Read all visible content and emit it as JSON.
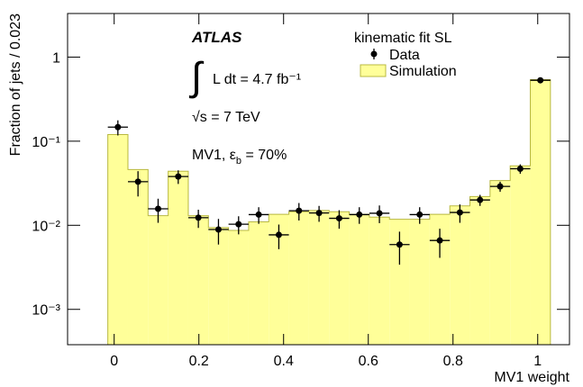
{
  "chart_data": {
    "type": "histogram",
    "x_label": "MV1 weight",
    "y_label": "Fraction of jets / 0.023",
    "log_y": true,
    "xlim": [
      -0.11,
      1.075
    ],
    "ylim": [
      0.00038,
      3.3
    ],
    "xticks": [
      0,
      0.2,
      0.4,
      0.6,
      0.8,
      1
    ],
    "yticks": [
      {
        "value": 0.001,
        "label": "10⁻³"
      },
      {
        "value": 0.01,
        "label": "10⁻²"
      },
      {
        "value": 0.1,
        "label": "10⁻¹"
      },
      1
    ],
    "bins": [
      -0.015,
      0.0325,
      0.08,
      0.1275,
      0.175,
      0.2225,
      0.27,
      0.3175,
      0.365,
      0.4125,
      0.46,
      0.5075,
      0.555,
      0.6025,
      0.65,
      0.6975,
      0.745,
      0.7925,
      0.84,
      0.8875,
      0.935,
      0.9825,
      1.03
    ],
    "legend_title": "kinematic fit SL",
    "series": [
      {
        "name": "Data",
        "color": "#000000",
        "values": [
          0.147,
          0.033,
          0.0157,
          0.038,
          0.0123,
          0.0089,
          0.0103,
          0.0134,
          0.0077,
          0.0149,
          0.014,
          0.0121,
          0.0134,
          0.0139,
          0.0059,
          0.0134,
          0.0066,
          0.0142,
          0.02,
          0.029,
          0.047,
          0.53
        ],
        "errors": [
          0.03,
          0.011,
          0.005,
          0.007,
          0.003,
          0.003,
          0.0025,
          0.003,
          0.0025,
          0.0035,
          0.003,
          0.003,
          0.003,
          0.0033,
          0.0025,
          0.003,
          0.0025,
          0.0035,
          0.003,
          0.004,
          0.006,
          0.02
        ]
      },
      {
        "name": "Simulation",
        "color": "#ffff99",
        "edge_color": "#b8b840",
        "values": [
          0.12,
          0.046,
          0.013,
          0.044,
          0.013,
          0.0094,
          0.0087,
          0.011,
          0.0135,
          0.0145,
          0.015,
          0.0145,
          0.0135,
          0.0125,
          0.0118,
          0.0118,
          0.0135,
          0.017,
          0.022,
          0.034,
          0.051,
          0.54
        ]
      }
    ],
    "annotations": [
      "ATLAS",
      "∫",
      "L dt = 4.7 fb⁻¹",
      "√s = 7 TeV",
      "MV1, ε",
      "b",
      " = 70%"
    ]
  }
}
